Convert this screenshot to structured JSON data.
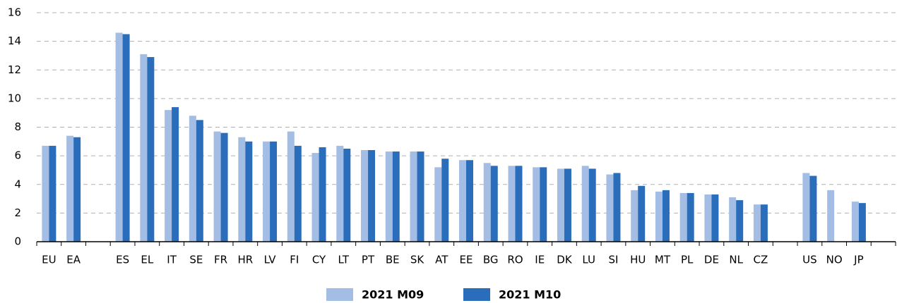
{
  "chart_data": {
    "type": "bar",
    "categories": [
      "EU",
      "EA",
      null,
      "ES",
      "EL",
      "IT",
      "SE",
      "FR",
      "HR",
      "LV",
      "FI",
      "CY",
      "LT",
      "PT",
      "BE",
      "SK",
      "AT",
      "EE",
      "BG",
      "RO",
      "IE",
      "DK",
      "LU",
      "SI",
      "HU",
      "MT",
      "PL",
      "DE",
      "NL",
      "CZ",
      null,
      "US",
      "NO",
      "JP",
      null
    ],
    "series": [
      {
        "name": "2021 M09",
        "color": "#a4bde4",
        "values": [
          6.7,
          7.4,
          null,
          14.6,
          13.1,
          9.2,
          8.8,
          7.7,
          7.3,
          7.0,
          7.7,
          6.2,
          6.7,
          6.4,
          6.3,
          6.3,
          5.2,
          5.7,
          5.5,
          5.3,
          5.2,
          5.1,
          5.3,
          4.7,
          3.6,
          3.5,
          3.4,
          3.3,
          3.1,
          2.6,
          null,
          4.8,
          3.6,
          2.8,
          null
        ]
      },
      {
        "name": "2021 M10",
        "color": "#2a6ebb",
        "values": [
          6.7,
          7.3,
          null,
          14.5,
          12.9,
          9.4,
          8.5,
          7.6,
          7.0,
          7.0,
          6.7,
          6.6,
          6.5,
          6.4,
          6.3,
          6.3,
          5.8,
          5.7,
          5.3,
          5.3,
          5.2,
          5.1,
          5.1,
          4.8,
          3.9,
          3.6,
          3.4,
          3.3,
          2.9,
          2.6,
          null,
          4.6,
          null,
          2.7,
          null
        ]
      }
    ],
    "ylim": [
      0,
      16
    ],
    "yticks": [
      0,
      2,
      4,
      6,
      8,
      10,
      12,
      14,
      16
    ],
    "grid": true,
    "legend": "bottom"
  }
}
